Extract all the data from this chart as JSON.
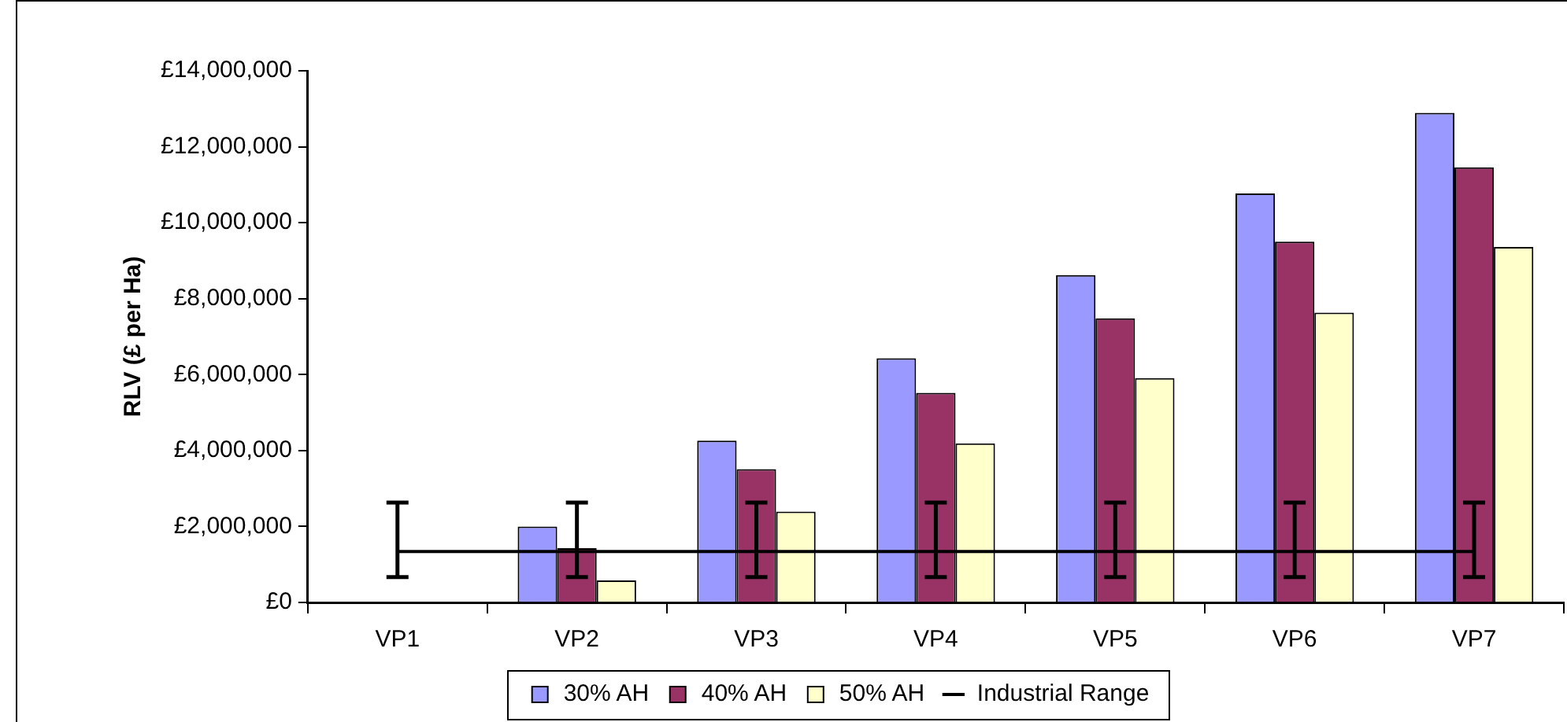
{
  "chart_data": {
    "type": "bar",
    "ylabel": "RLV (£ per Ha)",
    "categories": [
      "VP1",
      "VP2",
      "VP3",
      "VP4",
      "VP5",
      "VP6",
      "VP7"
    ],
    "series": [
      {
        "name": "30% AH",
        "color": "#9999ff",
        "values": [
          null,
          2000000,
          4260000,
          6430000,
          8620000,
          10770000,
          12890000
        ]
      },
      {
        "name": "40% AH",
        "color": "#993366",
        "values": [
          null,
          1430000,
          3510000,
          5520000,
          7480000,
          9500000,
          11460000
        ]
      },
      {
        "name": "50% AH",
        "color": "#ffffcc",
        "values": [
          null,
          580000,
          2390000,
          4190000,
          5910000,
          7630000,
          9360000
        ]
      },
      {
        "name": "Industrial Range",
        "type": "line",
        "color": "#000000",
        "values": [
          1340000,
          1340000,
          1340000,
          1340000,
          1340000,
          1340000,
          1340000
        ],
        "errors": [
          [
            670000,
            2630000
          ],
          [
            670000,
            2630000
          ],
          [
            670000,
            2630000
          ],
          [
            670000,
            2630000
          ],
          [
            670000,
            2630000
          ],
          [
            670000,
            2630000
          ],
          [
            670000,
            2630000
          ]
        ]
      }
    ],
    "ylim": [
      0,
      14000000
    ],
    "yticks": [
      {
        "value": 0,
        "label": "£0"
      },
      {
        "value": 2000000,
        "label": "£2,000,000"
      },
      {
        "value": 4000000,
        "label": "£4,000,000"
      },
      {
        "value": 6000000,
        "label": "£6,000,000"
      },
      {
        "value": 8000000,
        "label": "£8,000,000"
      },
      {
        "value": 10000000,
        "label": "£10,000,000"
      },
      {
        "value": 12000000,
        "label": "£12,000,000"
      },
      {
        "value": 14000000,
        "label": "£14,000,000"
      }
    ],
    "grid": false,
    "legend": "bottom",
    "marker": "none"
  }
}
